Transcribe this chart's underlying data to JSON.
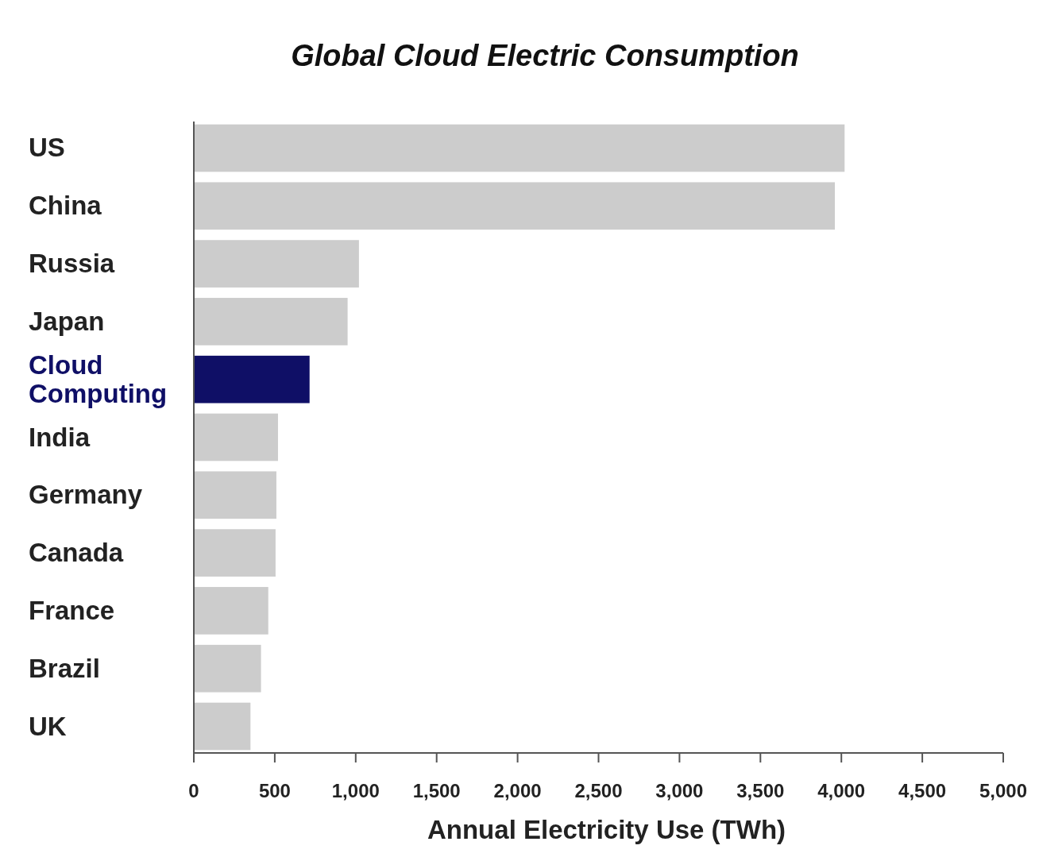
{
  "chart_data": {
    "type": "bar",
    "orientation": "horizontal",
    "title": "Global Cloud Electric Consumption",
    "xlabel": "Annual Electricity Use (TWh)",
    "categories": [
      "US",
      "China",
      "Russia",
      "Japan",
      "Cloud Computing",
      "India",
      "Germany",
      "Canada",
      "France",
      "Brazil",
      "UK"
    ],
    "values": [
      4020,
      3960,
      1020,
      950,
      715,
      520,
      510,
      505,
      460,
      415,
      350
    ],
    "colors": [
      "#cccccc",
      "#cccccc",
      "#cccccc",
      "#cccccc",
      "#0f0f66",
      "#cccccc",
      "#cccccc",
      "#cccccc",
      "#cccccc",
      "#cccccc",
      "#cccccc"
    ],
    "xlim": [
      0,
      5000
    ],
    "xticks": [
      0,
      500,
      {
        "value": 1000,
        "label": "1,000"
      },
      {
        "value": 1500,
        "label": "1,500"
      },
      {
        "value": 2000,
        "label": "2,000"
      },
      {
        "value": 2500,
        "label": "2,500"
      },
      {
        "value": 3000,
        "label": "3,000"
      },
      {
        "value": 3500,
        "label": "3,500"
      },
      {
        "value": 4000,
        "label": "4,000"
      },
      {
        "value": 4500,
        "label": "4,500"
      },
      {
        "value": 5000,
        "label": "5,000"
      }
    ],
    "grid": false
  }
}
